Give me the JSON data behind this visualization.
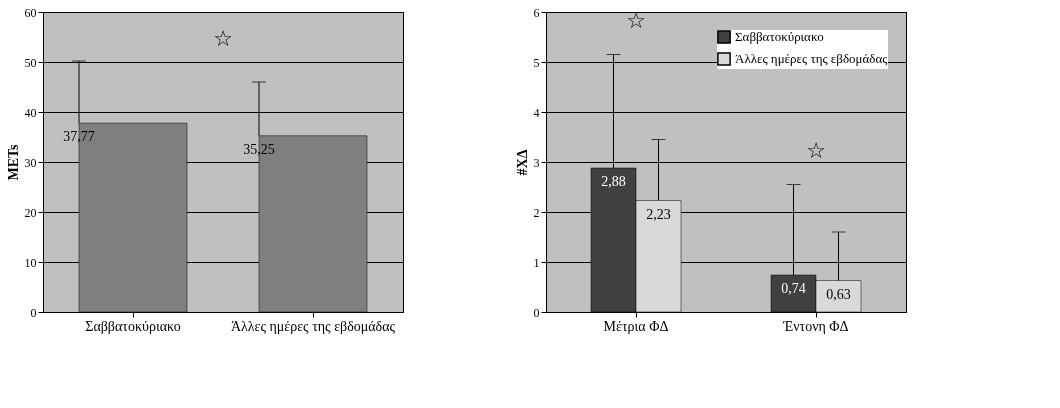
{
  "chart_data": [
    {
      "type": "bar",
      "categories": [
        "Σαββατοκύριακο",
        "Άλλες ημέρες της εβδομάδας"
      ],
      "ylabel": "METs",
      "ylim": [
        0,
        60
      ],
      "yticks": [
        0,
        10,
        20,
        30,
        40,
        50,
        60
      ],
      "grid": "y",
      "series": [
        {
          "color": "#7f7f7f",
          "values": [
            37.77,
            35.25
          ],
          "value_labels": [
            "37,77",
            "35,25"
          ],
          "errors": [
            [
              37.77,
              50.2
            ],
            [
              35.25,
              46.0
            ]
          ]
        }
      ],
      "annotations": [
        "☆"
      ],
      "legend": false
    },
    {
      "type": "bar",
      "categories": [
        "Μέτρια ΦΔ",
        "Έντονη ΦΔ"
      ],
      "ylabel": "#ΧΔ",
      "ylim": [
        0,
        6
      ],
      "yticks": [
        0,
        1,
        2,
        3,
        4,
        5,
        6
      ],
      "grid": "y",
      "legend": "top right",
      "series": [
        {
          "name": "Σαββατοκύριακο",
          "color": "#404040",
          "values": [
            2.88,
            0.74
          ],
          "value_labels": [
            "2,88",
            "0,74"
          ],
          "errors": [
            [
              2.88,
              5.15
            ],
            [
              0.74,
              2.55
            ]
          ]
        },
        {
          "name": "Άλλες ημέρες της εβδομάδας",
          "color": "#d9d9d9",
          "values": [
            2.23,
            0.63
          ],
          "value_labels": [
            "2,23",
            "0,63"
          ],
          "errors": [
            [
              2.23,
              3.45
            ],
            [
              0.63,
              1.6
            ]
          ]
        }
      ],
      "annotations": [
        "☆",
        "☆"
      ]
    }
  ]
}
